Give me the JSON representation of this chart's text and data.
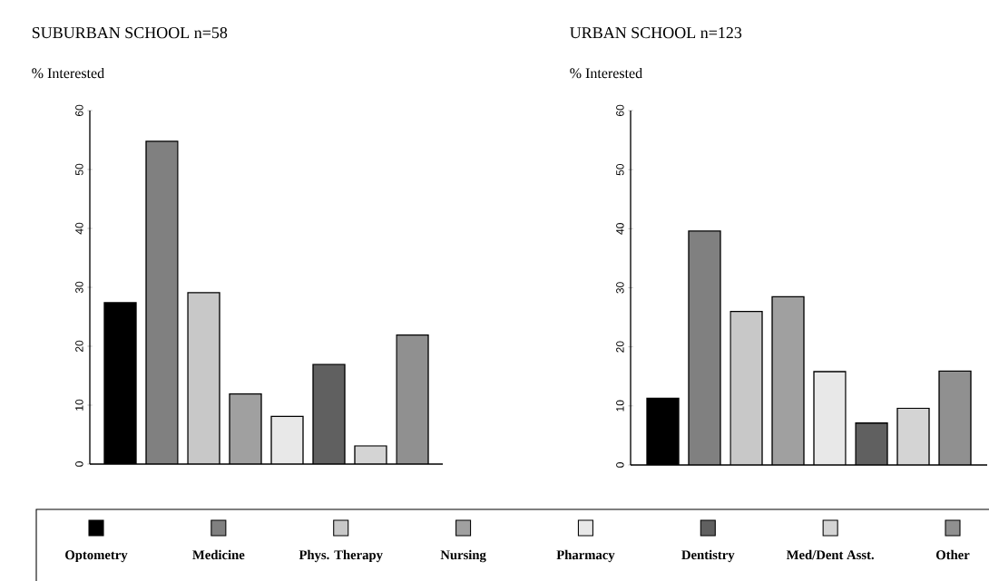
{
  "chart_data": [
    {
      "type": "bar",
      "title": "SUBURBAN SCHOOL   n=58",
      "ylabel": "% Interested",
      "categories": [
        null
      ],
      "ylim": [
        0,
        60
      ],
      "yticks": [
        0,
        10,
        20,
        30,
        40,
        50,
        60
      ],
      "legend": "bottom",
      "series": [
        {
          "name": "Optometry",
          "color": "#000000",
          "values": [
            27.4
          ]
        },
        {
          "name": "Medicine",
          "color": "#808080",
          "values": [
            54.8
          ]
        },
        {
          "name": "Phys. Therapy",
          "color": "#c8c8c8",
          "values": [
            29.1
          ]
        },
        {
          "name": "Nursing",
          "color": "#a0a0a0",
          "values": [
            11.9
          ]
        },
        {
          "name": "Pharmacy",
          "color": "#e8e8e8",
          "values": [
            8.1
          ]
        },
        {
          "name": "Dentistry",
          "color": "#606060",
          "values": [
            16.9
          ]
        },
        {
          "name": "Med/Dent Asst.",
          "color": "#d4d4d4",
          "values": [
            3.1
          ]
        },
        {
          "name": "Other",
          "color": "#909090",
          "values": [
            21.9
          ]
        }
      ]
    },
    {
      "type": "bar",
      "title": "URBAN SCHOOL   n=123",
      "ylabel": "% Interested",
      "categories": [
        null
      ],
      "ylim": [
        0,
        60
      ],
      "yticks": [
        0,
        10,
        20,
        30,
        40,
        50,
        60
      ],
      "series": [
        {
          "color": "#000000",
          "values": [
            11.3
          ]
        },
        {
          "color": "#808080",
          "values": [
            39.6
          ]
        },
        {
          "color": "#c8c8c8",
          "values": [
            26.0
          ]
        },
        {
          "color": "#a0a0a0",
          "values": [
            28.5
          ]
        },
        {
          "color": "#e8e8e8",
          "values": [
            15.8
          ]
        },
        {
          "color": "#606060",
          "values": [
            7.1
          ]
        },
        {
          "color": "#d4d4d4",
          "values": [
            9.6
          ]
        },
        {
          "color": "#909090",
          "values": [
            15.9
          ]
        }
      ]
    }
  ]
}
